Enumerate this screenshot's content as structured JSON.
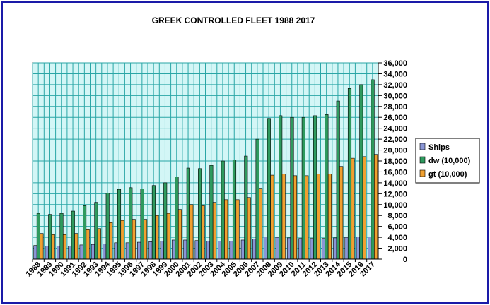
{
  "chart_data": {
    "type": "bar",
    "title": "GREEK CONTROLLED FLEET 1988 2017",
    "xlabel": "",
    "ylabel": "",
    "ylim": [
      0,
      36000
    ],
    "yticks": [
      "0",
      "2,000",
      "4,000",
      "6,000",
      "8,000",
      "10,000",
      "12,000",
      "14,000",
      "16,000",
      "18,000",
      "20,000",
      "22,000",
      "24,000",
      "26,000",
      "28,000",
      "30,000",
      "32,000",
      "34,000",
      "36,000"
    ],
    "y_axis_side": "right",
    "grid": true,
    "legend_position": "right",
    "categories": [
      "1988",
      "1989",
      "1990",
      "1991",
      "1992",
      "1993",
      "1994",
      "1995",
      "1996",
      "1997",
      "1998",
      "1999",
      "2000",
      "2001",
      "2002",
      "2003",
      "2004",
      "2005",
      "2006",
      "2007",
      "2008",
      "2009",
      "2010",
      "2011",
      "2012",
      "2013",
      "2014",
      "2015",
      "2016",
      "2017"
    ],
    "series": [
      {
        "name": "Ships",
        "color": "#8a96d6",
        "values": [
          2500,
          2400,
          2400,
          2400,
          2600,
          2700,
          2800,
          3000,
          3000,
          3100,
          3200,
          3300,
          3500,
          3500,
          3400,
          3300,
          3300,
          3300,
          3500,
          3700,
          4100,
          4000,
          3900,
          3800,
          3800,
          3800,
          3900,
          4000,
          4100,
          4100
        ]
      },
      {
        "name": "dw (10,000)",
        "color": "#2e9a5e",
        "values": [
          8400,
          8200,
          8400,
          8800,
          9800,
          10400,
          12100,
          12800,
          13100,
          12900,
          13500,
          14000,
          15100,
          16700,
          16600,
          17200,
          18000,
          18200,
          18900,
          22000,
          25800,
          26300,
          26000,
          26000,
          26300,
          26500,
          29000,
          31300,
          32000,
          32900
        ]
      },
      {
        "name": "gt (10,000)",
        "color": "#f0a030",
        "values": [
          4700,
          4500,
          4500,
          4700,
          5400,
          5600,
          6700,
          7100,
          7300,
          7300,
          8000,
          8400,
          9100,
          10000,
          9800,
          10400,
          10900,
          10900,
          11300,
          13000,
          15400,
          15600,
          15300,
          15300,
          15600,
          15600,
          17000,
          18500,
          18800,
          19200
        ]
      }
    ]
  }
}
